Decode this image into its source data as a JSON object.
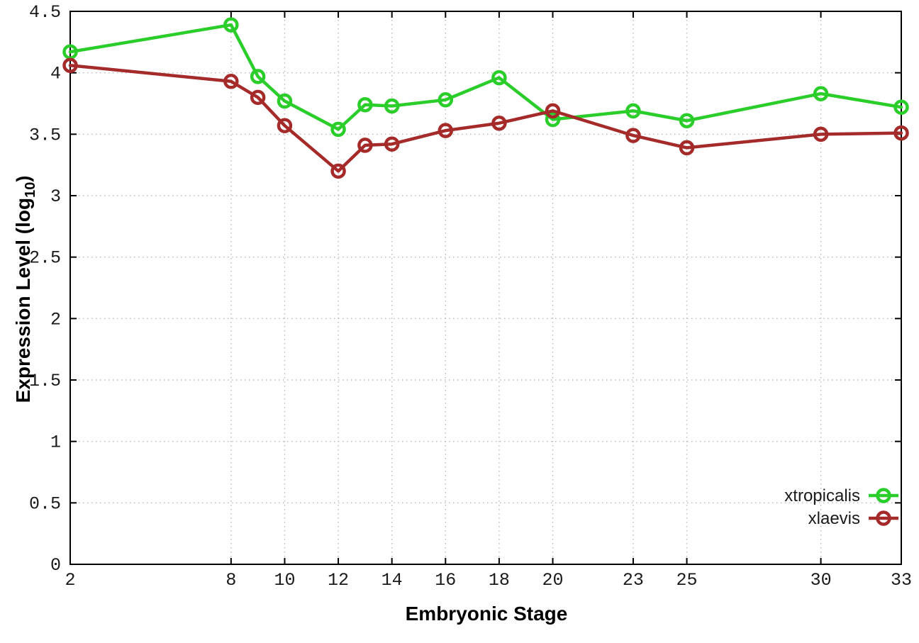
{
  "chart_data": {
    "type": "line",
    "title": "",
    "xlabel": "Embryonic Stage",
    "ylabel": "Expression Level (log10)",
    "ylabel_parts": {
      "pre": "Expression Level (log",
      "sub": "10",
      "post": ")"
    },
    "x": [
      2,
      8,
      9,
      10,
      12,
      13,
      14,
      16,
      18,
      20,
      23,
      25,
      30,
      33
    ],
    "x_ticks": [
      2,
      8,
      10,
      12,
      14,
      16,
      18,
      20,
      23,
      25,
      30,
      33
    ],
    "y_ticks": [
      0,
      0.5,
      1,
      1.5,
      2,
      2.5,
      3,
      3.5,
      4,
      4.5
    ],
    "xlim": [
      2,
      33
    ],
    "ylim": [
      0,
      4.5
    ],
    "grid": true,
    "grid_style": "dotted",
    "legend_position": "inside-bottom-right",
    "point_type": "open-circle",
    "series": [
      {
        "name": "xtropicalis",
        "color": "#2bcd2b",
        "values": [
          4.17,
          4.39,
          3.97,
          3.77,
          3.54,
          3.74,
          3.73,
          3.78,
          3.96,
          3.62,
          3.69,
          3.61,
          3.83,
          3.72
        ]
      },
      {
        "name": "xlaevis",
        "color": "#a52a2a",
        "values": [
          4.06,
          3.93,
          3.8,
          3.57,
          3.2,
          3.41,
          3.42,
          3.53,
          3.59,
          3.69,
          3.49,
          3.39,
          3.5,
          3.51
        ]
      }
    ]
  },
  "colors": {
    "background": "#ffffff",
    "axis": "#000000",
    "grid": "#b8b8b8",
    "text": "#1a1a1a"
  }
}
